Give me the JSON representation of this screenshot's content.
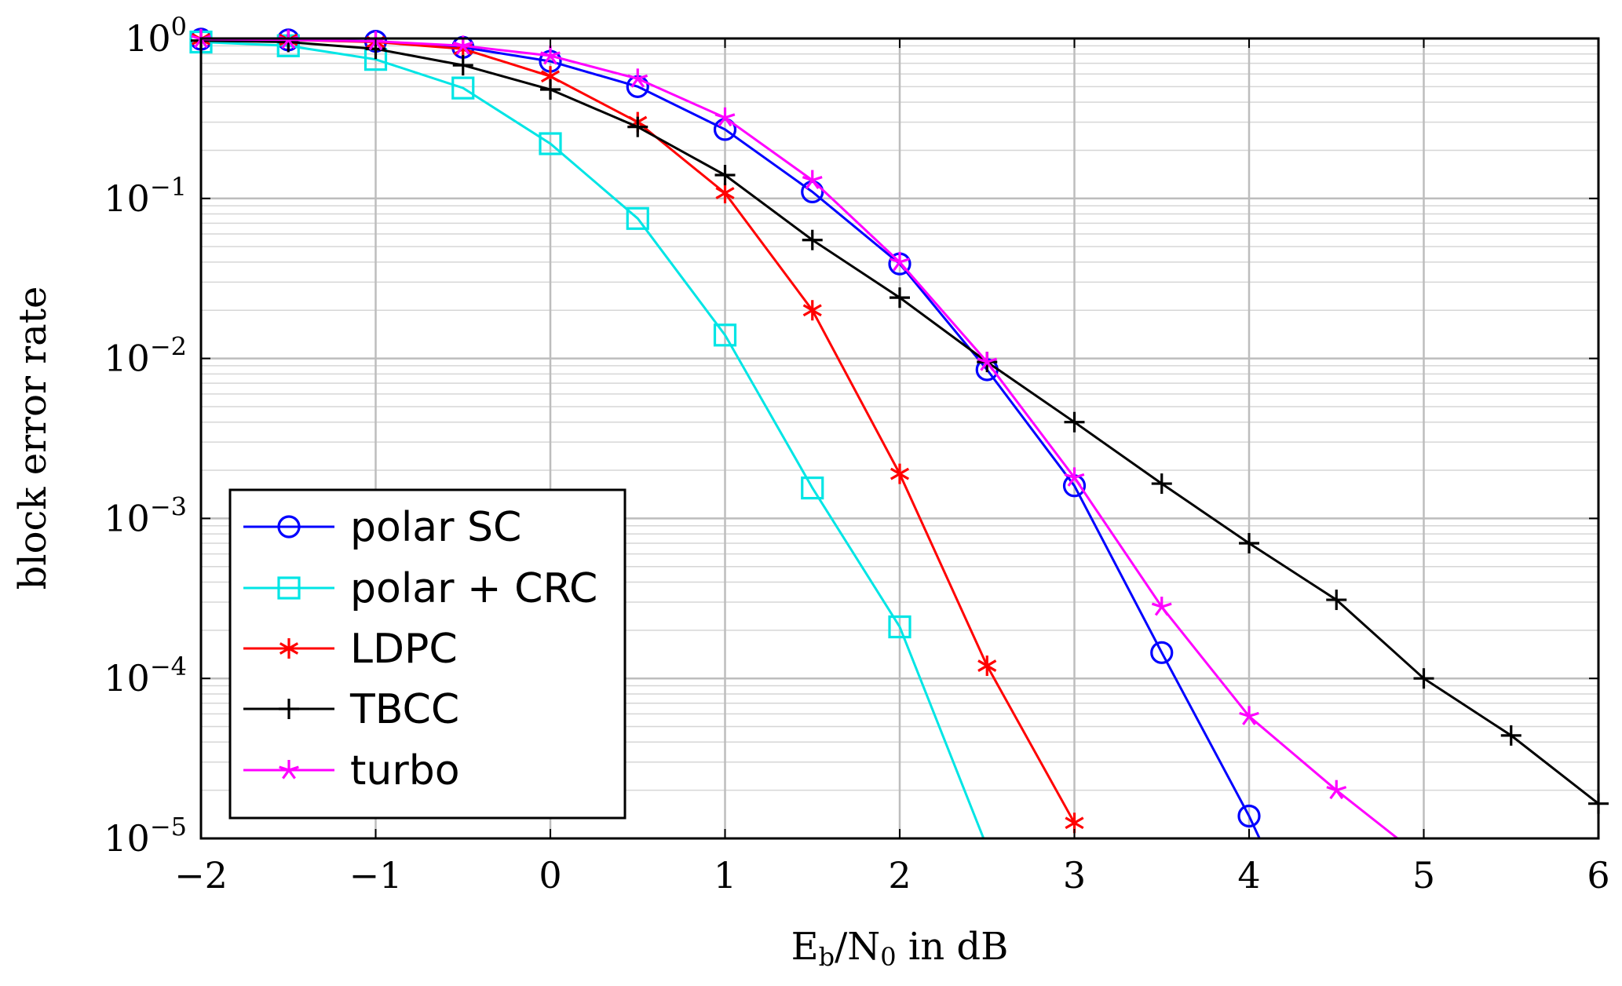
{
  "chart_data": {
    "type": "line",
    "title": "",
    "xlabel": "E_b/N_0 in dB",
    "xlabel_parts": {
      "e": "E",
      "b": "b",
      "slash": "/N",
      "zero": "0",
      "rest": " in dB"
    },
    "ylabel": "block error rate",
    "xlim": [
      -2,
      6
    ],
    "ylim": [
      1e-05,
      1
    ],
    "yscale": "log",
    "grid": true,
    "legend_position": "bottom-left",
    "x_ticks": [
      -2,
      -1,
      0,
      1,
      2,
      3,
      4,
      5,
      6
    ],
    "x_tick_labels": [
      "−2",
      "−1",
      "0",
      "1",
      "2",
      "3",
      "4",
      "5",
      "6"
    ],
    "y_ticks": [
      {
        "value": 1,
        "base": "10",
        "exp": "0"
      },
      {
        "value": 0.1,
        "base": "10",
        "exp": "−1"
      },
      {
        "value": 0.01,
        "base": "10",
        "exp": "−2"
      },
      {
        "value": 0.001,
        "base": "10",
        "exp": "−3"
      },
      {
        "value": 0.0001,
        "base": "10",
        "exp": "−4"
      },
      {
        "value": 1e-05,
        "base": "10",
        "exp": "−5"
      }
    ],
    "series": [
      {
        "name": "polar SC",
        "color": "#0000ff",
        "marker": "circle",
        "x": [
          -2,
          -1.5,
          -1,
          -0.5,
          0,
          0.5,
          1,
          1.5,
          2,
          2.5,
          3,
          3.5,
          4,
          4.06
        ],
        "y": [
          0.99,
          0.98,
          0.96,
          0.88,
          0.72,
          0.5,
          0.27,
          0.11,
          0.039,
          0.0085,
          0.0016,
          0.000145,
          1.38e-05,
          1e-05
        ],
        "marker_count": 13
      },
      {
        "name": "polar + CRC",
        "color": "#00e5e5",
        "marker": "square",
        "x": [
          -2,
          -1.5,
          -1,
          -0.5,
          0,
          0.5,
          1,
          1.5,
          2,
          2.48
        ],
        "y": [
          0.95,
          0.9,
          0.74,
          0.49,
          0.22,
          0.075,
          0.014,
          0.00155,
          0.00021,
          1e-05
        ],
        "marker_count": 9
      },
      {
        "name": "LDPC",
        "color": "#ff0000",
        "marker": "asterisk",
        "x": [
          -2,
          -1.5,
          -1,
          -0.5,
          0,
          0.5,
          1,
          1.5,
          2,
          2.5,
          3
        ],
        "y": [
          0.99,
          0.98,
          0.95,
          0.86,
          0.58,
          0.3,
          0.108,
          0.02,
          0.0019,
          0.00012,
          1.25e-05
        ],
        "marker_count": 11
      },
      {
        "name": "TBCC",
        "color": "#000000",
        "marker": "plus",
        "x": [
          -2,
          -1.5,
          -1,
          -0.5,
          0,
          0.5,
          1,
          1.5,
          2,
          2.5,
          3,
          3.5,
          4,
          4.5,
          5,
          5.5,
          6
        ],
        "y": [
          0.97,
          0.95,
          0.86,
          0.68,
          0.48,
          0.28,
          0.14,
          0.055,
          0.024,
          0.0095,
          0.004,
          0.00165,
          0.0007,
          0.00031,
          0.0001,
          4.4e-05,
          1.65e-05
        ],
        "marker_count": 17
      },
      {
        "name": "turbo",
        "color": "#ff00ff",
        "marker": "star",
        "x": [
          -2,
          -1.5,
          -1,
          -0.5,
          0,
          0.5,
          1,
          1.5,
          2,
          2.5,
          3,
          3.5,
          4,
          4.5,
          4.85
        ],
        "y": [
          0.99,
          0.98,
          0.96,
          0.9,
          0.78,
          0.56,
          0.32,
          0.13,
          0.04,
          0.0095,
          0.0018,
          0.00028,
          5.8e-05,
          2e-05,
          1e-05
        ],
        "marker_count": 14
      }
    ]
  }
}
